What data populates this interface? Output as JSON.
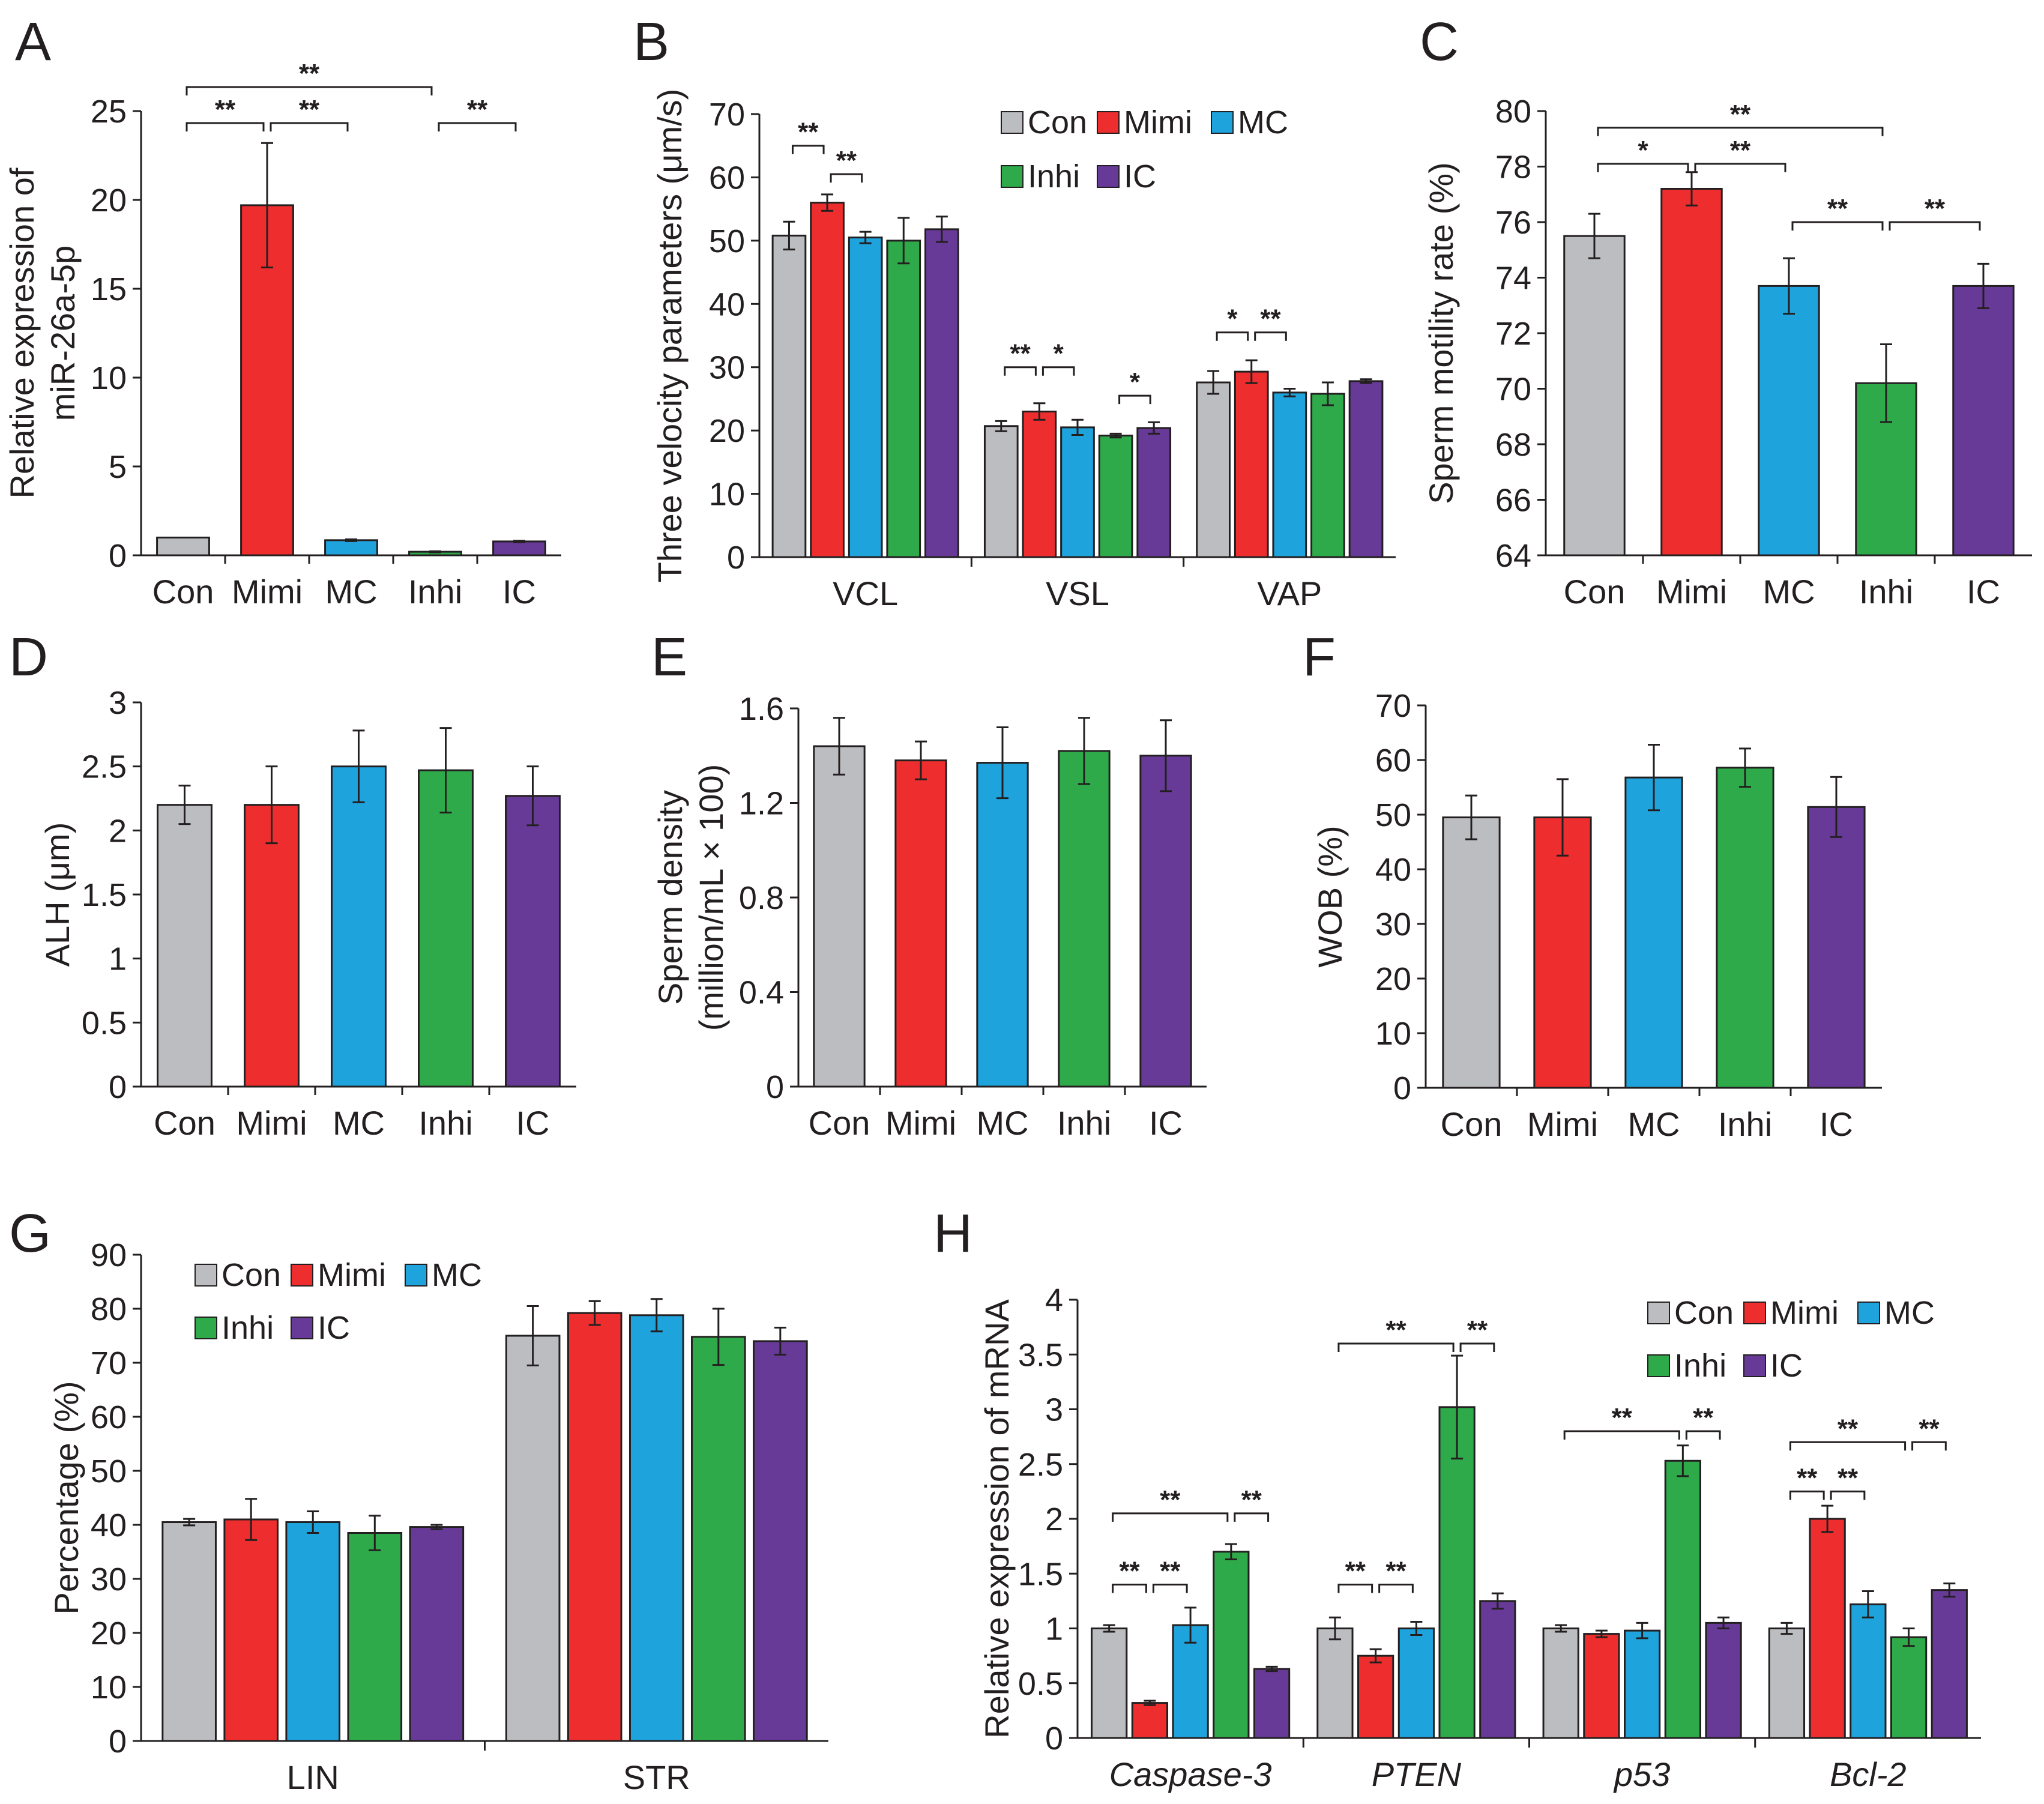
{
  "colors": {
    "Con": "#bcbdc0",
    "Mimi": "#ee2e2e",
    "MC": "#1fa3dc",
    "Inhi": "#2faa4a",
    "IC": "#673a97",
    "axis": "#231f20"
  },
  "groups": [
    "Con",
    "Mimi",
    "MC",
    "Inhi",
    "IC"
  ],
  "chart_data": [
    {
      "id": "A",
      "panel_label": "A",
      "type": "bar",
      "ylabel": [
        "Relative expression of",
        "miR-26a-5p"
      ],
      "ylim": [
        0,
        25
      ],
      "yticks": [
        0,
        5,
        10,
        15,
        20,
        25
      ],
      "categories": [
        "Con",
        "Mimi",
        "MC",
        "Inhi",
        "IC"
      ],
      "values": [
        1.0,
        19.7,
        0.85,
        0.2,
        0.78
      ],
      "errors": [
        0.0,
        3.5,
        0.05,
        0.03,
        0.04
      ],
      "significance": [
        {
          "from": 0,
          "to": 3,
          "label": "**",
          "level": 3
        },
        {
          "from": 0,
          "to": 1,
          "label": "**",
          "level": 2
        },
        {
          "from": 1,
          "to": 2,
          "label": "**",
          "level": 2
        },
        {
          "from": 3,
          "to": 4,
          "label": "**",
          "level": 2
        }
      ]
    },
    {
      "id": "B",
      "panel_label": "B",
      "type": "bar",
      "ylabel": [
        "Three velocity parameters (μm/s)"
      ],
      "ylim": [
        0,
        70
      ],
      "yticks": [
        0,
        10,
        20,
        30,
        40,
        50,
        60,
        70
      ],
      "categories": [
        "VCL",
        "VSL",
        "VAP"
      ],
      "series": [
        {
          "name": "Con",
          "values": [
            50.8,
            20.7,
            27.6
          ],
          "errors": [
            2.2,
            0.8,
            1.8
          ]
        },
        {
          "name": "Mimi",
          "values": [
            56.0,
            23.0,
            29.3
          ],
          "errors": [
            1.3,
            1.3,
            1.8
          ]
        },
        {
          "name": "MC",
          "values": [
            50.5,
            20.5,
            26.0
          ],
          "errors": [
            0.9,
            1.2,
            0.6
          ]
        },
        {
          "name": "Inhi",
          "values": [
            50.0,
            19.2,
            25.8
          ],
          "errors": [
            3.6,
            0.3,
            1.8
          ]
        },
        {
          "name": "IC",
          "values": [
            51.8,
            20.4,
            27.8
          ],
          "errors": [
            2.0,
            0.9,
            0.3
          ]
        }
      ],
      "legend": {
        "row1": [
          "Con",
          "Mimi",
          "MC"
        ],
        "row2": [
          "Inhi",
          "IC"
        ]
      },
      "significance": [
        {
          "cat": 0,
          "from": 0,
          "to": 1,
          "label": "**",
          "y": 65
        },
        {
          "cat": 0,
          "from": 1,
          "to": 2,
          "label": "**",
          "y": 60.5
        },
        {
          "cat": 1,
          "from": 0,
          "to": 1,
          "label": "**",
          "y": 30
        },
        {
          "cat": 1,
          "from": 1,
          "to": 2,
          "label": "*",
          "y": 30
        },
        {
          "cat": 1,
          "from": 3,
          "to": 4,
          "label": "*",
          "y": 25.5
        },
        {
          "cat": 2,
          "from": 0,
          "to": 1,
          "label": "*",
          "y": 35.5
        },
        {
          "cat": 2,
          "from": 1,
          "to": 2,
          "label": "**",
          "y": 35.5
        }
      ]
    },
    {
      "id": "C",
      "panel_label": "C",
      "type": "bar",
      "ylabel": [
        "Sperm motility rate (%)"
      ],
      "ylim": [
        64,
        80
      ],
      "yticks": [
        64,
        66,
        68,
        70,
        72,
        74,
        76,
        78,
        80
      ],
      "categories": [
        "Con",
        "Mimi",
        "MC",
        "Inhi",
        "IC"
      ],
      "values": [
        75.5,
        77.2,
        73.7,
        70.2,
        73.7
      ],
      "errors": [
        0.8,
        0.6,
        1.0,
        1.4,
        0.8
      ],
      "significance": [
        {
          "from": 0,
          "to": 3,
          "label": "**",
          "y": 79.4
        },
        {
          "from": 0,
          "to": 1,
          "label": "*",
          "y": 78.1
        },
        {
          "from": 1,
          "to": 2,
          "label": "**",
          "y": 78.1
        },
        {
          "from": 2,
          "to": 3,
          "label": "**",
          "y": 76.0
        },
        {
          "from": 3,
          "to": 4,
          "label": "**",
          "y": 76.0
        }
      ]
    },
    {
      "id": "D",
      "panel_label": "D",
      "type": "bar",
      "ylabel": [
        "ALH (μm)"
      ],
      "ylim": [
        0,
        3
      ],
      "yticks": [
        "0",
        "0.5",
        "1",
        "1.5",
        "2",
        "2.5",
        "3"
      ],
      "categories": [
        "Con",
        "Mimi",
        "MC",
        "Inhi",
        "IC"
      ],
      "values": [
        2.2,
        2.2,
        2.5,
        2.47,
        2.27
      ],
      "errors": [
        0.15,
        0.3,
        0.28,
        0.33,
        0.23
      ]
    },
    {
      "id": "E",
      "panel_label": "E",
      "type": "bar",
      "ylabel": [
        "Sperm density",
        "(million/mL × 100)"
      ],
      "ylim": [
        0,
        1.6
      ],
      "yticks": [
        "0",
        "0.4",
        "0.8",
        "1.2",
        "1.6"
      ],
      "categories": [
        "Con",
        "Mimi",
        "MC",
        "Inhi",
        "IC"
      ],
      "values": [
        1.44,
        1.38,
        1.37,
        1.42,
        1.4
      ],
      "errors": [
        0.12,
        0.08,
        0.15,
        0.14,
        0.15
      ]
    },
    {
      "id": "F",
      "panel_label": "F",
      "type": "bar",
      "ylabel": [
        "WOB (%)"
      ],
      "ylim": [
        0,
        70
      ],
      "yticks": [
        0,
        10,
        20,
        30,
        40,
        50,
        60,
        70
      ],
      "categories": [
        "Con",
        "Mimi",
        "MC",
        "Inhi",
        "IC"
      ],
      "values": [
        49.5,
        49.5,
        56.8,
        58.6,
        51.4
      ],
      "errors": [
        4.0,
        7.0,
        6.0,
        3.5,
        5.5
      ]
    },
    {
      "id": "G",
      "panel_label": "G",
      "type": "bar",
      "ylabel": [
        "Percentage (%)"
      ],
      "ylim": [
        0,
        90
      ],
      "yticks": [
        0,
        10,
        20,
        30,
        40,
        50,
        60,
        70,
        80,
        90
      ],
      "categories": [
        "LIN",
        "STR"
      ],
      "series": [
        {
          "name": "Con",
          "values": [
            40.5,
            75.0
          ],
          "errors": [
            0.6,
            5.5
          ]
        },
        {
          "name": "Mimi",
          "values": [
            41.0,
            79.2
          ],
          "errors": [
            3.8,
            2.2
          ]
        },
        {
          "name": "MC",
          "values": [
            40.5,
            78.8
          ],
          "errors": [
            2.0,
            3.0
          ]
        },
        {
          "name": "Inhi",
          "values": [
            38.5,
            74.8
          ],
          "errors": [
            3.2,
            5.2
          ]
        },
        {
          "name": "IC",
          "values": [
            39.6,
            74.0
          ],
          "errors": [
            0.4,
            2.5
          ]
        }
      ],
      "legend": {
        "row1": [
          "Con",
          "Mimi",
          "MC"
        ],
        "row2": [
          "Inhi",
          "IC"
        ]
      }
    },
    {
      "id": "H",
      "panel_label": "H",
      "type": "bar",
      "ylabel": [
        "Relative expression of mRNA"
      ],
      "ylim": [
        0,
        4
      ],
      "yticks": [
        "0",
        "0.5",
        "1",
        "1.5",
        "2",
        "2.5",
        "3",
        "3.5",
        "4"
      ],
      "categories": [
        "Caspase-3",
        "PTEN",
        "p53",
        "Bcl-2"
      ],
      "series": [
        {
          "name": "Con",
          "values": [
            1.0,
            1.0,
            1.0,
            1.0
          ],
          "errors": [
            0.03,
            0.1,
            0.03,
            0.05
          ]
        },
        {
          "name": "Mimi",
          "values": [
            0.32,
            0.75,
            0.95,
            2.0
          ],
          "errors": [
            0.02,
            0.06,
            0.03,
            0.12
          ]
        },
        {
          "name": "MC",
          "values": [
            1.03,
            1.0,
            0.98,
            1.22
          ],
          "errors": [
            0.16,
            0.06,
            0.07,
            0.12
          ]
        },
        {
          "name": "Inhi",
          "values": [
            1.7,
            3.02,
            2.53,
            0.92
          ],
          "errors": [
            0.07,
            0.47,
            0.14,
            0.08
          ]
        },
        {
          "name": "IC",
          "values": [
            0.63,
            1.25,
            1.05,
            1.35
          ],
          "errors": [
            0.02,
            0.07,
            0.05,
            0.06
          ]
        }
      ],
      "legend": {
        "row1": [
          "Con",
          "Mimi",
          "MC"
        ],
        "row2": [
          "Inhi",
          "IC"
        ]
      },
      "significance": [
        {
          "cat": 0,
          "from": 0,
          "to": 3,
          "label": "**",
          "y": 2.05
        },
        {
          "cat": 0,
          "from": 3,
          "to": 4,
          "label": "**",
          "y": 2.05
        },
        {
          "cat": 0,
          "from": 0,
          "to": 1,
          "label": "**",
          "y": 1.4
        },
        {
          "cat": 0,
          "from": 1,
          "to": 2,
          "label": "**",
          "y": 1.4
        },
        {
          "cat": 1,
          "from": 0,
          "to": 3,
          "label": "**",
          "y": 3.6
        },
        {
          "cat": 1,
          "from": 3,
          "to": 4,
          "label": "**",
          "y": 3.6
        },
        {
          "cat": 1,
          "from": 0,
          "to": 1,
          "label": "**",
          "y": 1.4
        },
        {
          "cat": 1,
          "from": 1,
          "to": 2,
          "label": "**",
          "y": 1.4
        },
        {
          "cat": 2,
          "from": 0,
          "to": 3,
          "label": "**",
          "y": 2.8
        },
        {
          "cat": 2,
          "from": 3,
          "to": 4,
          "label": "**",
          "y": 2.8
        },
        {
          "cat": 3,
          "from": 0,
          "to": 3,
          "label": "**",
          "y": 2.7
        },
        {
          "cat": 3,
          "from": 3,
          "to": 4,
          "label": "**",
          "y": 2.7
        },
        {
          "cat": 3,
          "from": 0,
          "to": 1,
          "label": "**",
          "y": 2.25
        },
        {
          "cat": 3,
          "from": 1,
          "to": 2,
          "label": "**",
          "y": 2.25
        }
      ]
    }
  ]
}
